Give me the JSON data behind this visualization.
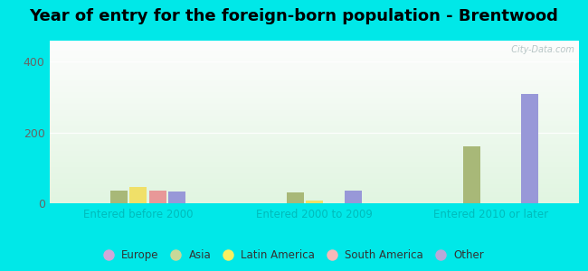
{
  "title": "Year of entry for the foreign-born population - Brentwood",
  "groups": [
    "Entered before 2000",
    "Entered 2000 to 2009",
    "Entered 2010 or later"
  ],
  "categories": [
    "Europe",
    "Asia",
    "Latin America",
    "South America",
    "Other"
  ],
  "bar_colors": [
    "#c8a0d8",
    "#a8b878",
    "#f0e068",
    "#e89898",
    "#9898d8"
  ],
  "legend_colors": [
    "#d0a8d8",
    "#c8d898",
    "#f8f060",
    "#f8b8b8",
    "#b8a8d8"
  ],
  "values": {
    "Entered before 2000": [
      0,
      35,
      45,
      35,
      32
    ],
    "Entered 2000 to 2009": [
      0,
      30,
      8,
      0,
      35
    ],
    "Entered 2010 or later": [
      0,
      160,
      0,
      0,
      310
    ]
  },
  "ylim": [
    0,
    460
  ],
  "yticks": [
    0,
    200,
    400
  ],
  "background_color": "#00e8e8",
  "title_fontsize": 13,
  "axis_label_color": "#00bbbb",
  "watermark": "  City-Data.com"
}
